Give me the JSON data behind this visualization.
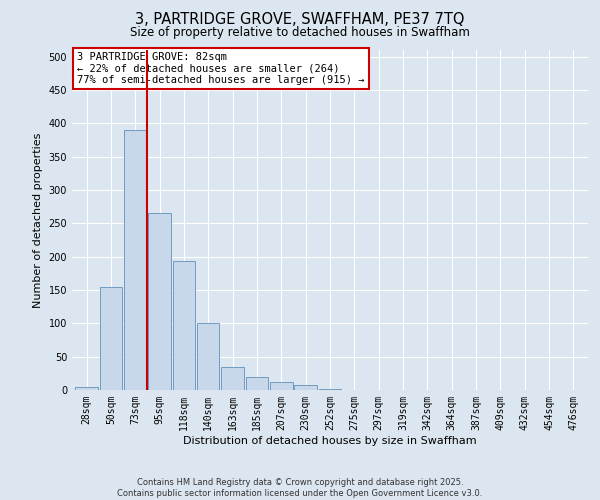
{
  "title": "3, PARTRIDGE GROVE, SWAFFHAM, PE37 7TQ",
  "subtitle": "Size of property relative to detached houses in Swaffham",
  "bar_values": [
    5,
    155,
    390,
    265,
    193,
    100,
    35,
    20,
    12,
    8,
    2,
    0,
    0,
    0,
    0,
    0,
    0,
    0,
    0,
    0,
    0
  ],
  "bin_labels": [
    "28sqm",
    "50sqm",
    "73sqm",
    "95sqm",
    "118sqm",
    "140sqm",
    "163sqm",
    "185sqm",
    "207sqm",
    "230sqm",
    "252sqm",
    "275sqm",
    "297sqm",
    "319sqm",
    "342sqm",
    "364sqm",
    "387sqm",
    "409sqm",
    "432sqm",
    "454sqm",
    "476sqm"
  ],
  "bar_color": "#c8d8ea",
  "bar_edge_color": "#6090b8",
  "vline_x_index": 2,
  "vline_color": "#cc0000",
  "ylabel": "Number of detached properties",
  "xlabel": "Distribution of detached houses by size in Swaffham",
  "ylim": [
    0,
    510
  ],
  "yticks": [
    0,
    50,
    100,
    150,
    200,
    250,
    300,
    350,
    400,
    450,
    500
  ],
  "annotation_title": "3 PARTRIDGE GROVE: 82sqm",
  "annotation_line2": "← 22% of detached houses are smaller (264)",
  "annotation_line3": "77% of semi-detached houses are larger (915) →",
  "annotation_box_color": "#ffffff",
  "annotation_edge_color": "#cc0000",
  "footer_line1": "Contains HM Land Registry data © Crown copyright and database right 2025.",
  "footer_line2": "Contains public sector information licensed under the Open Government Licence v3.0.",
  "bg_color": "#dce6f0",
  "plot_bg_color": "#dce6f0",
  "grid_color": "#ffffff",
  "title_fontsize": 10.5,
  "subtitle_fontsize": 8.5,
  "tick_fontsize": 7,
  "label_fontsize": 8,
  "annotation_fontsize": 7.5,
  "footer_fontsize": 6
}
